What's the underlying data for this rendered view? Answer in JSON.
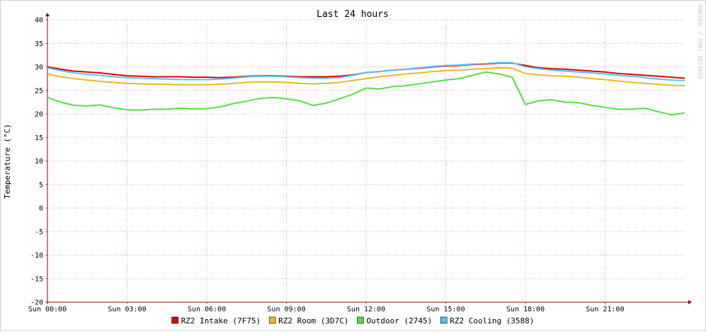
{
  "chart_data": {
    "type": "line",
    "title": "Last 24 hours",
    "ylabel": "Temperature (°C)",
    "watermark": "RRDTOOL / TOBI OETIKER",
    "xlim": [
      0,
      24
    ],
    "xticks": [
      {
        "value": 0,
        "label": "Sun 00:00"
      },
      {
        "value": 3,
        "label": "Sun 03:00"
      },
      {
        "value": 6,
        "label": "Sun 06:00"
      },
      {
        "value": 9,
        "label": "Sun 09:00"
      },
      {
        "value": 12,
        "label": "Sun 12:00"
      },
      {
        "value": 15,
        "label": "Sun 15:00"
      },
      {
        "value": 18,
        "label": "Sun 18:00"
      },
      {
        "value": 21,
        "label": "Sun 21:00"
      }
    ],
    "ylim": [
      -20,
      40
    ],
    "yticks": [
      -20,
      -15,
      -10,
      -5,
      0,
      5,
      10,
      15,
      20,
      25,
      30,
      35,
      40
    ],
    "grid": true,
    "legend": "bottom",
    "x": [
      0,
      0.5,
      1,
      1.5,
      2,
      2.5,
      3,
      3.5,
      4,
      4.5,
      5,
      5.5,
      6,
      6.5,
      7,
      7.5,
      8,
      8.5,
      9,
      9.5,
      10,
      10.5,
      11,
      11.5,
      12,
      12.5,
      13,
      13.5,
      14,
      14.5,
      15,
      15.5,
      16,
      16.5,
      17,
      17.5,
      18,
      18.5,
      19,
      19.5,
      20,
      20.5,
      21,
      21.5,
      22,
      22.5,
      23,
      23.5,
      24
    ],
    "series": [
      {
        "name": "RZ2 Intake (7F75)",
        "color": "#e00000",
        "values": [
          30,
          29.5,
          29.1,
          28.9,
          28.7,
          28.4,
          28.1,
          28,
          27.9,
          27.9,
          27.9,
          27.8,
          27.8,
          27.7,
          27.8,
          28,
          28.1,
          28.1,
          28,
          27.9,
          27.9,
          27.9,
          28,
          28.3,
          28.8,
          29,
          29.3,
          29.5,
          29.7,
          30,
          30.2,
          30.3,
          30.5,
          30.6,
          30.8,
          30.8,
          30.3,
          29.8,
          29.6,
          29.5,
          29.3,
          29.1,
          28.9,
          28.6,
          28.4,
          28.2,
          28,
          27.8,
          27.6
        ]
      },
      {
        "name": "RZ2 Room (3D7C)",
        "color": "#e8b820",
        "values": [
          28.5,
          27.9,
          27.5,
          27.2,
          26.9,
          26.7,
          26.5,
          26.4,
          26.3,
          26.3,
          26.2,
          26.2,
          26.2,
          26.3,
          26.5,
          26.7,
          26.8,
          26.8,
          26.7,
          26.5,
          26.4,
          26.5,
          26.7,
          27.1,
          27.5,
          27.9,
          28.2,
          28.5,
          28.7,
          29,
          29.2,
          29.3,
          29.5,
          29.6,
          29.8,
          29.7,
          28.6,
          28.3,
          28.1,
          28,
          27.8,
          27.5,
          27.3,
          27,
          26.7,
          26.5,
          26.3,
          26.1,
          26
        ]
      },
      {
        "name": "Outdoor (2745)",
        "color": "#50e040",
        "values": [
          23.5,
          22.5,
          21.8,
          21.7,
          21.9,
          21.3,
          20.9,
          20.8,
          21,
          21,
          21.2,
          21.1,
          21.1,
          21.5,
          22.2,
          22.7,
          23.3,
          23.5,
          23.2,
          22.8,
          21.8,
          22.3,
          23.2,
          24.2,
          25.5,
          25.3,
          25.8,
          26,
          26.4,
          26.8,
          27.2,
          27.5,
          28.2,
          28.9,
          28.5,
          27.8,
          22,
          22.8,
          23,
          22.5,
          22.4,
          21.8,
          21.4,
          21,
          21,
          21.2,
          20.5,
          19.8,
          20.2
        ]
      },
      {
        "name": "RZ2 Cooling (3588)",
        "color": "#50c8f0",
        "values": [
          29.8,
          29.2,
          28.7,
          28.4,
          28.2,
          27.9,
          27.7,
          27.6,
          27.5,
          27.4,
          27.3,
          27.3,
          27.3,
          27.4,
          27.6,
          27.9,
          28,
          28,
          27.9,
          27.7,
          27.6,
          27.6,
          27.7,
          28.2,
          28.8,
          29,
          29.3,
          29.5,
          29.8,
          30.1,
          30.3,
          30.4,
          30.6,
          30.7,
          30.9,
          30.9,
          30,
          29.6,
          29.3,
          29.1,
          28.9,
          28.7,
          28.5,
          28.2,
          28,
          27.7,
          27.4,
          27.2,
          27.1
        ]
      }
    ]
  }
}
